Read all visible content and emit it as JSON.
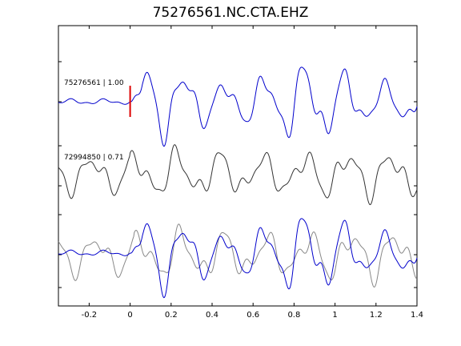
{
  "chart_data": {
    "type": "line",
    "title": "75276561.NC.CTA.EHZ",
    "xlabel": "",
    "ylabel": "",
    "xlim": [
      -0.35,
      1.4
    ],
    "x_ticks": [
      -0.2,
      0,
      0.2,
      0.4,
      0.6,
      0.8,
      1,
      1.2,
      1.4
    ],
    "x_tick_labels": [
      "-0.2",
      "0",
      "0.2",
      "0.4",
      "0.6",
      "0.8",
      "1",
      "1.2",
      "1.4"
    ],
    "grid": false,
    "pick_time": 0,
    "traces": [
      {
        "label": "75276561 | 1.00",
        "color": "#0000cc",
        "row": "top"
      },
      {
        "label": "72994850 | 0.71",
        "color": "#333333",
        "row": "middle"
      }
    ],
    "overlay": {
      "row": "bottom",
      "colors": [
        "#0000cc",
        "#888888"
      ]
    },
    "pick_color": "#dd0000"
  }
}
